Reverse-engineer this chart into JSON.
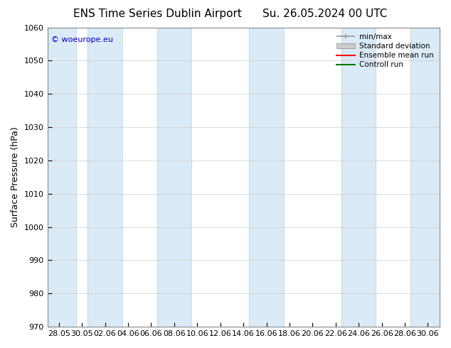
{
  "title_left": "ENS Time Series Dublin Airport",
  "title_right": "Su. 26.05.2024 00 UTC",
  "ylabel": "Surface Pressure (hPa)",
  "ylim": [
    970,
    1060
  ],
  "yticks": [
    970,
    980,
    990,
    1000,
    1010,
    1020,
    1030,
    1040,
    1050,
    1060
  ],
  "x_tick_labels": [
    "28.05",
    "30.05",
    "02.06",
    "04.06",
    "06.06",
    "08.06",
    "10.06",
    "12.06",
    "14.06",
    "16.06",
    "18.06",
    "20.06",
    "22.06",
    "24.06",
    "26.06",
    "28.06",
    "30.06"
  ],
  "background_color": "#ffffff",
  "plot_bg_color": "#ffffff",
  "band_color": "#daeaf7",
  "band_edge_color": "#b0cfe0",
  "copyright_text": "© woeurope.eu",
  "copyright_color": "#0000cc",
  "legend_entries": [
    "min/max",
    "Standard deviation",
    "Ensemble mean run",
    "Controll run"
  ],
  "legend_line_colors": [
    "#999999",
    "#bbbbbb",
    "#ff0000",
    "#007700"
  ],
  "title_fontsize": 11,
  "ylabel_fontsize": 9,
  "tick_fontsize": 8,
  "band_positions_start": [
    0,
    2,
    4,
    6,
    8,
    10,
    12,
    14
  ],
  "band_positions_end": [
    1,
    3,
    5,
    7,
    9,
    11,
    13,
    15
  ]
}
